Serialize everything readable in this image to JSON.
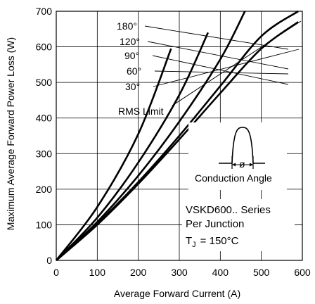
{
  "chart_data": {
    "type": "line",
    "xlabel": "Average Forward Current (A)",
    "ylabel": "Maximum Average Forward Power Loss (W)",
    "xlim": [
      0,
      600
    ],
    "ylim": [
      0,
      700
    ],
    "x_ticks": [
      "0",
      "100",
      "200",
      "300",
      "400",
      "500",
      "600"
    ],
    "y_ticks": [
      "0",
      "100",
      "200",
      "300",
      "400",
      "500",
      "600",
      "700"
    ],
    "grid": true,
    "series": [
      {
        "name": "180°",
        "x": [
          0,
          100,
          200,
          300,
          400,
          500,
          590
        ],
        "y": [
          0,
          100,
          215,
          340,
          470,
          595,
          670
        ]
      },
      {
        "name": "120°",
        "x": [
          0,
          100,
          200,
          300,
          400,
          500,
          590
        ],
        "y": [
          0,
          103,
          220,
          350,
          490,
          630,
          700
        ]
      },
      {
        "name": "90°",
        "x": [
          0,
          100,
          200,
          300,
          400,
          460
        ],
        "y": [
          0,
          108,
          238,
          390,
          565,
          700
        ]
      },
      {
        "name": "60°",
        "x": [
          0,
          100,
          200,
          300,
          370
        ],
        "y": [
          0,
          120,
          275,
          465,
          640
        ]
      },
      {
        "name": "30°",
        "x": [
          0,
          100,
          200,
          280
        ],
        "y": [
          0,
          150,
          355,
          595
        ]
      }
    ],
    "rms_limit_label": "RMS  Limit",
    "inset_label": "Conduction  Angle",
    "inset_symbol": "ø",
    "annotation_lines": [
      "VSKD600..  Series",
      "Per  Junction"
    ],
    "tj_prefix": "T",
    "tj_sub": "J",
    "tj_value": "=  150°C"
  }
}
